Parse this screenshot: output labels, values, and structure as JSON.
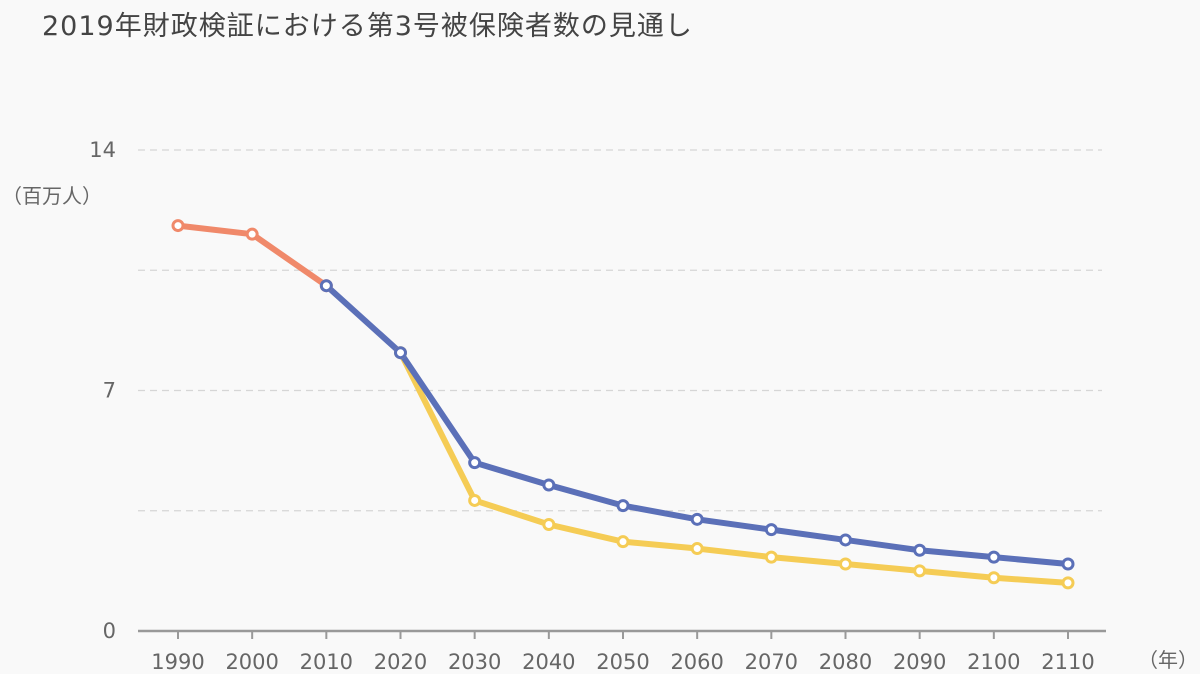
{
  "title": "2019年財政検証における第3号被保険者数の見通し",
  "chart_data": {
    "type": "line",
    "title": "2019年財政検証における第3号被保険者数の見通し",
    "ylabel": "（百万人）",
    "xlabel": "（年）",
    "ylim": [
      0,
      14
    ],
    "y_ticks": [
      0,
      7,
      14
    ],
    "grid": true,
    "x": [
      1990,
      2000,
      2010,
      2020,
      2030,
      2040,
      2050,
      2060,
      2070,
      2080,
      2090,
      2100,
      2110
    ],
    "series": [
      {
        "color": "#f0896a",
        "points": [
          [
            1990,
            11.8
          ],
          [
            2000,
            11.55
          ],
          [
            2010,
            10.05
          ]
        ]
      },
      {
        "color": "#5b70b8",
        "points": [
          [
            2010,
            10.05
          ],
          [
            2020,
            8.1
          ],
          [
            2030,
            4.9
          ],
          [
            2040,
            4.25
          ],
          [
            2050,
            3.65
          ],
          [
            2060,
            3.25
          ],
          [
            2070,
            2.95
          ],
          [
            2080,
            2.65
          ],
          [
            2090,
            2.35
          ],
          [
            2100,
            2.15
          ],
          [
            2110,
            1.95
          ]
        ]
      },
      {
        "color": "#f5cc55",
        "points": [
          [
            2020,
            8.1
          ],
          [
            2030,
            3.8
          ],
          [
            2040,
            3.1
          ],
          [
            2050,
            2.6
          ],
          [
            2060,
            2.4
          ],
          [
            2070,
            2.15
          ],
          [
            2080,
            1.95
          ],
          [
            2090,
            1.75
          ],
          [
            2100,
            1.55
          ],
          [
            2110,
            1.4
          ]
        ]
      }
    ]
  }
}
